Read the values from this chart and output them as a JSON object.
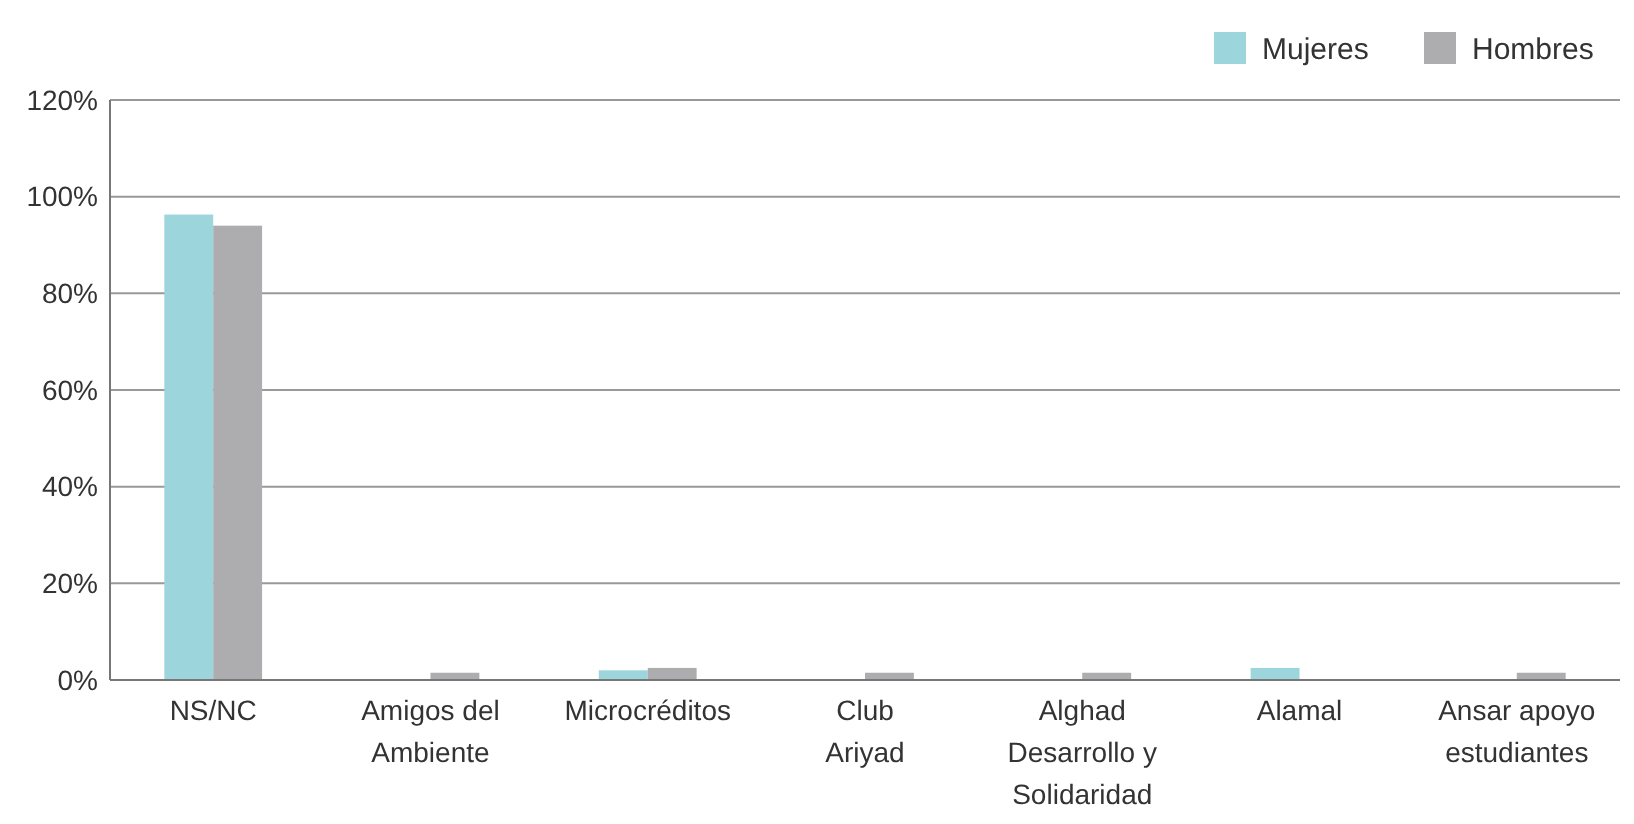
{
  "chart_data": {
    "type": "bar",
    "categories": [
      "NS/NC",
      "Amigos del\nAmbiente",
      "Microcréditos",
      "Club\nAriyad",
      "Alghad\nDesarrollo y\nSolidaridad",
      "Alamal",
      "Ansar apoyo\nestudiantes"
    ],
    "series": [
      {
        "name": "Mujeres",
        "color": "#9dd5dc",
        "values": [
          96.3,
          0,
          2,
          0,
          0,
          2.5,
          0
        ]
      },
      {
        "name": "Hombres",
        "color": "#adadb0",
        "values": [
          94,
          1.5,
          2.5,
          1.5,
          1.5,
          0,
          1.5
        ]
      }
    ],
    "ylim": [
      0,
      120
    ],
    "yticks": [
      {
        "value": 0,
        "label": "0%"
      },
      {
        "value": 20,
        "label": "20%"
      },
      {
        "value": 40,
        "label": "40%"
      },
      {
        "value": 60,
        "label": "60%"
      },
      {
        "value": 80,
        "label": "80%"
      },
      {
        "value": 100,
        "label": "100%"
      },
      {
        "value": 120,
        "label": "120%"
      }
    ],
    "grid": "y",
    "legend": "top right"
  }
}
